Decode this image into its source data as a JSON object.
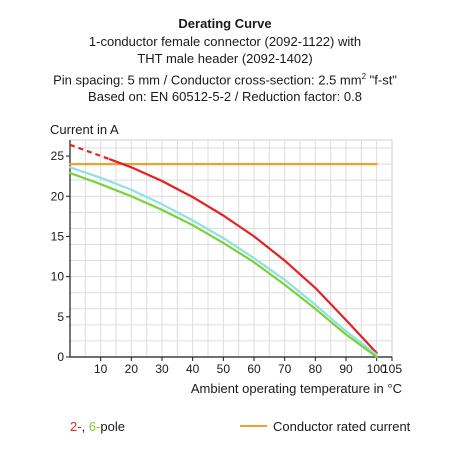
{
  "chart_data": {
    "type": "line",
    "title": "Derating Curve",
    "subtitle_lines": [
      "1-conductor female connector (2092-1122) with",
      "THT male header (2092-1402)",
      "Pin spacing: 5 mm / Conductor cross-section: 2.5 mm",
      "Based on: EN 60512-5-2 / Reduction factor: 0.8"
    ],
    "subtitle_sup": "2",
    "subtitle_after_sup": " \"f-st\"",
    "ylabel": "Current in A",
    "xlabel": "Ambient operating temperature in °C",
    "xlim": [
      0,
      105
    ],
    "ylim": [
      0,
      27
    ],
    "x_ticks": [
      10,
      20,
      30,
      40,
      50,
      60,
      70,
      80,
      90,
      100,
      105
    ],
    "y_ticks": [
      0,
      5,
      10,
      15,
      20,
      25
    ],
    "grid": true,
    "series": [
      {
        "name": "Conductor rated current",
        "color": "#f0a030",
        "points": [
          [
            0,
            24
          ],
          [
            100,
            24
          ]
        ]
      },
      {
        "name": "2-",
        "color": "#e52222",
        "dashed_points": [
          [
            0,
            26.4
          ],
          [
            13,
            24.6
          ]
        ],
        "points": [
          [
            13,
            24.6
          ],
          [
            20,
            23.6
          ],
          [
            30,
            21.9
          ],
          [
            40,
            19.9
          ],
          [
            50,
            17.6
          ],
          [
            60,
            15.0
          ],
          [
            70,
            12.0
          ],
          [
            80,
            8.6
          ],
          [
            90,
            4.6
          ],
          [
            100,
            0.5
          ]
        ]
      },
      {
        "name": "6-pole",
        "color": "#8ee2e2",
        "points": [
          [
            0,
            23.6
          ],
          [
            10,
            22.3
          ],
          [
            20,
            20.8
          ],
          [
            30,
            19.0
          ],
          [
            40,
            17.0
          ],
          [
            50,
            14.8
          ],
          [
            60,
            12.3
          ],
          [
            70,
            9.6
          ],
          [
            80,
            6.5
          ],
          [
            90,
            3.2
          ],
          [
            100,
            0.3
          ]
        ]
      },
      {
        "name": "6-pole",
        "color": "#7ad23a",
        "points": [
          [
            0,
            22.9
          ],
          [
            10,
            21.5
          ],
          [
            20,
            20.0
          ],
          [
            30,
            18.3
          ],
          [
            40,
            16.4
          ],
          [
            50,
            14.2
          ],
          [
            60,
            11.8
          ],
          [
            70,
            9.0
          ],
          [
            80,
            6.0
          ],
          [
            90,
            2.8
          ],
          [
            100,
            0
          ]
        ]
      }
    ],
    "legend": {
      "left_prefix": "2-",
      "left_mid": ", ",
      "left_num": "6-",
      "left_suffix": "pole",
      "right_label": "Conductor rated current",
      "colors": {
        "red": "#e52222",
        "green": "#7ad23a",
        "orange": "#f0a030"
      }
    }
  }
}
